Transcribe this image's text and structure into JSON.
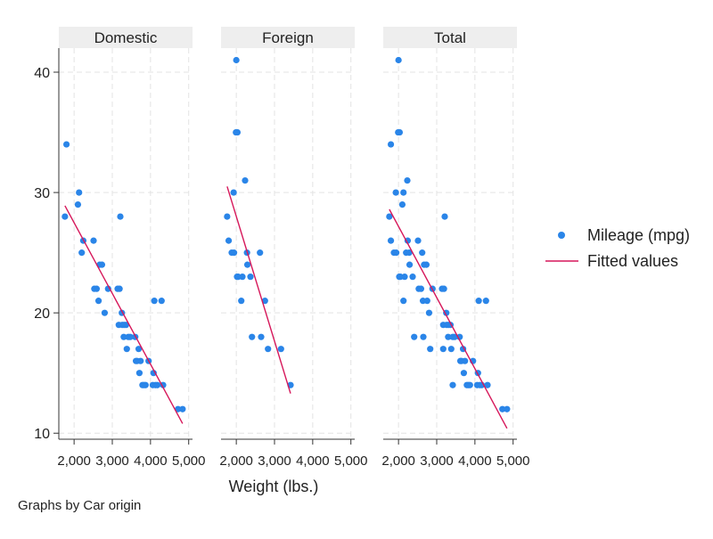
{
  "chart_data": {
    "type": "scatter",
    "note": "Graphs by Car origin",
    "xlabel": "Weight (lbs.)",
    "ylabel": "",
    "xlim": [
      1600,
      5100
    ],
    "ylim": [
      9.5,
      42
    ],
    "x_ticks": [
      2000,
      3000,
      4000,
      5000
    ],
    "x_tick_labels": [
      "2,000",
      "3,000",
      "4,000",
      "5,000"
    ],
    "y_ticks": [
      10,
      20,
      30,
      40
    ],
    "y_tick_labels": [
      "10",
      "20",
      "30",
      "40"
    ],
    "grid": true,
    "legend": {
      "placement": "right",
      "entries": [
        {
          "label": "Mileage (mpg)",
          "kind": "marker",
          "color": "#2a85e8"
        },
        {
          "label": "Fitted values",
          "kind": "line",
          "color": "#d6175a"
        }
      ]
    },
    "panels": [
      {
        "title": "Domestic",
        "points": [
          [
            1800,
            34
          ],
          [
            1760,
            28
          ],
          [
            2130,
            30
          ],
          [
            2100,
            29
          ],
          [
            2240,
            26
          ],
          [
            2200,
            25
          ],
          [
            2510,
            26
          ],
          [
            2530,
            22
          ],
          [
            2590,
            22
          ],
          [
            2640,
            21
          ],
          [
            2670,
            24
          ],
          [
            2730,
            24
          ],
          [
            2800,
            20
          ],
          [
            2890,
            22
          ],
          [
            3140,
            22
          ],
          [
            3190,
            22
          ],
          [
            3210,
            28
          ],
          [
            3170,
            19
          ],
          [
            3260,
            19
          ],
          [
            3250,
            20
          ],
          [
            3310,
            19
          ],
          [
            3300,
            18
          ],
          [
            3360,
            19
          ],
          [
            3380,
            17
          ],
          [
            3420,
            18
          ],
          [
            3470,
            18
          ],
          [
            3600,
            18
          ],
          [
            3620,
            16
          ],
          [
            3650,
            16
          ],
          [
            3690,
            17
          ],
          [
            3710,
            15
          ],
          [
            3740,
            16
          ],
          [
            3790,
            14
          ],
          [
            3830,
            14
          ],
          [
            3870,
            14
          ],
          [
            3950,
            16
          ],
          [
            4060,
            14
          ],
          [
            4080,
            15
          ],
          [
            4100,
            21
          ],
          [
            4130,
            14
          ],
          [
            4180,
            14
          ],
          [
            4290,
            21
          ],
          [
            4330,
            14
          ],
          [
            4720,
            12
          ],
          [
            4840,
            12
          ]
        ],
        "fit": {
          "x": [
            1760,
            4840
          ],
          "y": [
            28.9,
            10.8
          ]
        }
      },
      {
        "title": "Foreign",
        "points": [
          [
            2000,
            41
          ],
          [
            1990,
            35
          ],
          [
            2030,
            35
          ],
          [
            2230,
            31
          ],
          [
            1760,
            28
          ],
          [
            1930,
            30
          ],
          [
            1800,
            26
          ],
          [
            1880,
            25
          ],
          [
            1940,
            25
          ],
          [
            2020,
            23
          ],
          [
            2050,
            23
          ],
          [
            2130,
            21
          ],
          [
            2160,
            23
          ],
          [
            2280,
            25
          ],
          [
            2290,
            24
          ],
          [
            2370,
            23
          ],
          [
            2410,
            18
          ],
          [
            2620,
            25
          ],
          [
            2650,
            18
          ],
          [
            2750,
            21
          ],
          [
            2830,
            17
          ],
          [
            3170,
            17
          ],
          [
            3420,
            14
          ]
        ],
        "fit": {
          "x": [
            1760,
            3420
          ],
          "y": [
            30.5,
            13.3
          ]
        }
      },
      {
        "title": "Total",
        "points": [
          [
            1800,
            34
          ],
          [
            1760,
            28
          ],
          [
            2130,
            30
          ],
          [
            2100,
            29
          ],
          [
            2240,
            26
          ],
          [
            2200,
            25
          ],
          [
            2510,
            26
          ],
          [
            2530,
            22
          ],
          [
            2590,
            22
          ],
          [
            2640,
            21
          ],
          [
            2670,
            24
          ],
          [
            2730,
            24
          ],
          [
            2800,
            20
          ],
          [
            2890,
            22
          ],
          [
            3140,
            22
          ],
          [
            3190,
            22
          ],
          [
            3210,
            28
          ],
          [
            3170,
            19
          ],
          [
            3260,
            19
          ],
          [
            3250,
            20
          ],
          [
            3310,
            19
          ],
          [
            3300,
            18
          ],
          [
            3360,
            19
          ],
          [
            3380,
            17
          ],
          [
            3420,
            18
          ],
          [
            3470,
            18
          ],
          [
            3600,
            18
          ],
          [
            3620,
            16
          ],
          [
            3650,
            16
          ],
          [
            3690,
            17
          ],
          [
            3710,
            15
          ],
          [
            3740,
            16
          ],
          [
            3790,
            14
          ],
          [
            3830,
            14
          ],
          [
            3870,
            14
          ],
          [
            3950,
            16
          ],
          [
            4060,
            14
          ],
          [
            4080,
            15
          ],
          [
            4100,
            21
          ],
          [
            4130,
            14
          ],
          [
            4180,
            14
          ],
          [
            4290,
            21
          ],
          [
            4330,
            14
          ],
          [
            4720,
            12
          ],
          [
            4840,
            12
          ],
          [
            2000,
            41
          ],
          [
            1990,
            35
          ],
          [
            2030,
            35
          ],
          [
            2230,
            31
          ],
          [
            1930,
            30
          ],
          [
            1800,
            26
          ],
          [
            1880,
            25
          ],
          [
            1940,
            25
          ],
          [
            2020,
            23
          ],
          [
            2050,
            23
          ],
          [
            2130,
            21
          ],
          [
            2160,
            23
          ],
          [
            2280,
            25
          ],
          [
            2290,
            24
          ],
          [
            2370,
            23
          ],
          [
            2410,
            18
          ],
          [
            2620,
            25
          ],
          [
            2650,
            18
          ],
          [
            2750,
            21
          ],
          [
            2830,
            17
          ],
          [
            3170,
            17
          ],
          [
            3420,
            14
          ]
        ],
        "fit": {
          "x": [
            1760,
            4840
          ],
          "y": [
            28.6,
            10.4
          ]
        }
      }
    ]
  }
}
